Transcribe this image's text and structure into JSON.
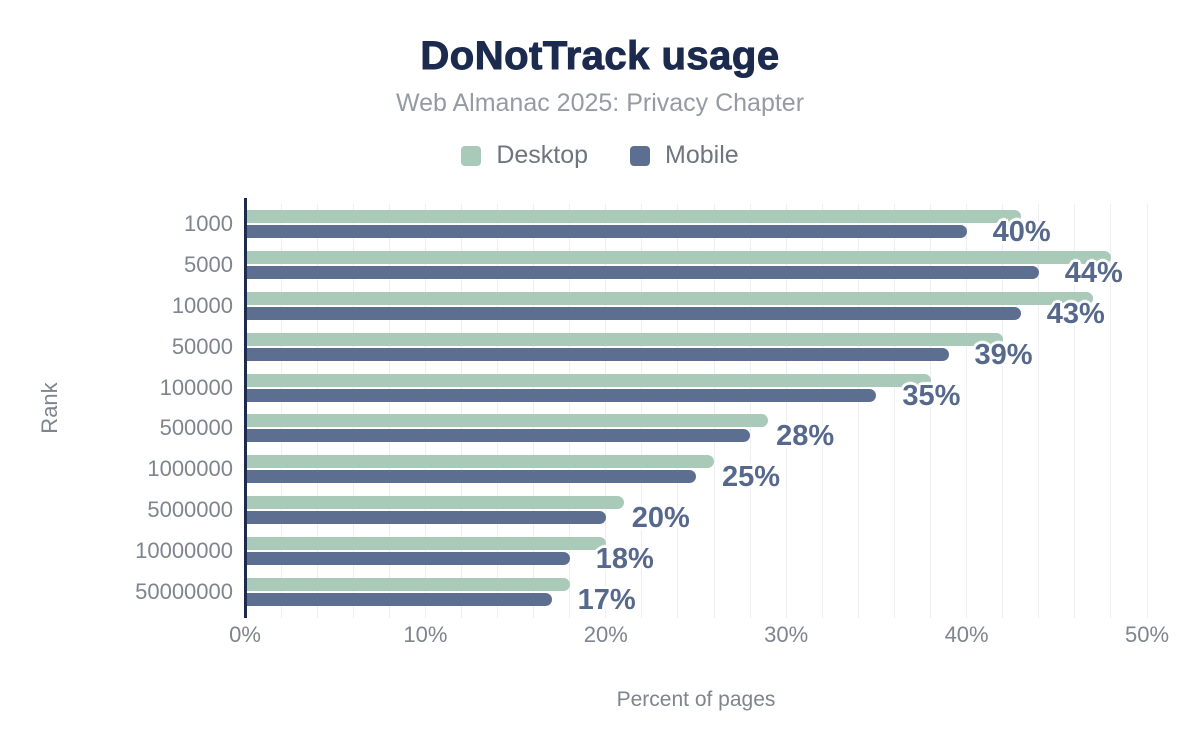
{
  "header": {
    "title": "DoNotTrack usage",
    "subtitle": "Web Almanac 2025: Privacy Chapter"
  },
  "chart_data": {
    "type": "bar",
    "orientation": "horizontal",
    "title": "DoNotTrack usage",
    "subtitle": "Web Almanac 2025: Privacy Chapter",
    "xlabel": "Percent of pages",
    "ylabel": "Rank",
    "xlim": [
      0,
      50
    ],
    "x_tick_values": [
      0,
      10,
      20,
      30,
      40,
      50
    ],
    "x_tick_labels": [
      "0%",
      "10%",
      "20%",
      "30%",
      "40%",
      "50%"
    ],
    "grid": true,
    "gridline_step_percent": 2,
    "legend_position": "top",
    "categories": [
      "1000",
      "5000",
      "10000",
      "50000",
      "100000",
      "500000",
      "1000000",
      "5000000",
      "10000000",
      "50000000"
    ],
    "series": [
      {
        "name": "Desktop",
        "color": "#a9cab8",
        "values": [
          43,
          48,
          47,
          42,
          38,
          29,
          26,
          21,
          20,
          18
        ]
      },
      {
        "name": "Mobile",
        "color": "#5d6f90",
        "values": [
          40,
          44,
          43,
          39,
          35,
          28,
          25,
          20,
          18,
          17
        ]
      }
    ],
    "value_labels": {
      "labeled_series": "Mobile",
      "color": "#56688c",
      "values": [
        "40%",
        "44%",
        "43%",
        "39%",
        "35%",
        "28%",
        "25%",
        "20%",
        "18%",
        "17%"
      ]
    }
  },
  "colors": {
    "background": "#ffffff",
    "title": "#1c2b4d",
    "subtitle": "#949ba3",
    "legend_text": "#6f757e",
    "axis_text": "#7e858d",
    "axis_line": "#1c2b4d",
    "gridline": "#edeff2",
    "desktop_bar": "#a9cab8",
    "mobile_bar": "#5d6f90",
    "value_label": "#56688c"
  }
}
